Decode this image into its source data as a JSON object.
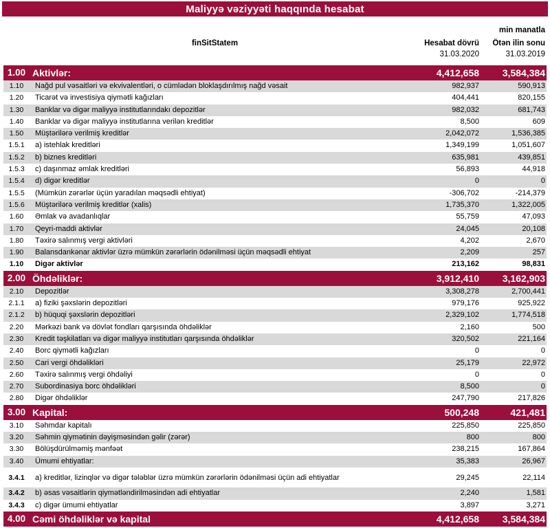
{
  "title": "Maliyyə vəziyyəti haqqında hesabat",
  "unit_note": "min manatla",
  "header": {
    "statement_label": "finSitStatem",
    "col1_label": "Hesabat dövrü",
    "col1_date": "31.03.2020",
    "col2_label": "Ötən ilin sonu",
    "col2_date": "31.03.2019"
  },
  "colors": {
    "accent": "#9B0F3D",
    "stripe": "#D9D9D9",
    "section_text": "#FFFFFF"
  },
  "rows": [
    {
      "code": "1.00",
      "label": "Aktivlər:",
      "v1": "4,412,658",
      "v2": "3,584,384",
      "type": "section",
      "shaded": false,
      "bold": true,
      "code_bold": true,
      "gap_before": 0
    },
    {
      "code": "1.10",
      "label": "Nağd pul vəsaitləri və  ekvivalentləri, o cümlədən bloklaşdırılmış nağd vəsait",
      "v1": "982,937",
      "v2": "590,913",
      "type": "item",
      "shaded": true,
      "bold": false,
      "code_bold": false,
      "gap_before": 0
    },
    {
      "code": "1.20",
      "label": "Ticarət və investisiya qiymətli kağızları",
      "v1": "404,441",
      "v2": "820,155",
      "type": "item",
      "shaded": false,
      "bold": false,
      "code_bold": false,
      "gap_before": 0
    },
    {
      "code": "1.30",
      "label": "Banklar və digər maliyyə institutlarındakı depozitlər",
      "v1": "982,032",
      "v2": "681,743",
      "type": "item",
      "shaded": true,
      "bold": false,
      "code_bold": false,
      "gap_before": 0
    },
    {
      "code": "1.40",
      "label": "Banklar və digər maliyyə institutlarına verilən kreditlər",
      "v1": "8,500",
      "v2": "609",
      "type": "item",
      "shaded": false,
      "bold": false,
      "code_bold": false,
      "gap_before": 0
    },
    {
      "code": "1.50",
      "label": "Müştərilərə verilmiş kreditlər",
      "v1": "2,042,072",
      "v2": "1,536,385",
      "type": "item",
      "shaded": true,
      "bold": false,
      "code_bold": false,
      "gap_before": 0
    },
    {
      "code": "1.5.1",
      "label": "a) istehlak kreditləri",
      "v1": "1,349,199",
      "v2": "1,051,607",
      "type": "item",
      "shaded": false,
      "bold": false,
      "code_bold": false,
      "gap_before": 0
    },
    {
      "code": "1.5.2",
      "label": "b) biznes kreditləri",
      "v1": "635,981",
      "v2": "439,851",
      "type": "item",
      "shaded": true,
      "bold": false,
      "code_bold": false,
      "gap_before": 0
    },
    {
      "code": "1.5.3",
      "label": "c) daşınmaz əmlak kreditləri",
      "v1": "56,893",
      "v2": "44,918",
      "type": "item",
      "shaded": false,
      "bold": false,
      "code_bold": false,
      "gap_before": 0
    },
    {
      "code": "1.5.4",
      "label": "d) digər kreditlər",
      "v1": "0",
      "v2": "0",
      "type": "item",
      "shaded": true,
      "bold": false,
      "code_bold": false,
      "gap_before": 0
    },
    {
      "code": "1.5.5",
      "label": "(Mümkün zərərlər üçün yaradılan məqsədli ehtiyat)",
      "v1": "-306,702",
      "v2": "-214,379",
      "type": "item",
      "shaded": false,
      "bold": false,
      "code_bold": false,
      "gap_before": 0
    },
    {
      "code": "1.5.6",
      "label": "Müştərilərə verilmiş kreditlər (xalis)",
      "v1": "1,735,370",
      "v2": "1,322,005",
      "type": "item",
      "shaded": true,
      "bold": false,
      "code_bold": false,
      "gap_before": 0
    },
    {
      "code": "1.60",
      "label": "Əmlak və avadanlıqlar",
      "v1": "55,759",
      "v2": "47,093",
      "type": "item",
      "shaded": false,
      "bold": false,
      "code_bold": false,
      "gap_before": 0
    },
    {
      "code": "1.70",
      "label": "Qeyri-maddi aktivlər",
      "v1": "24,045",
      "v2": "20,108",
      "type": "item",
      "shaded": true,
      "bold": false,
      "code_bold": false,
      "gap_before": 0
    },
    {
      "code": "1.80",
      "label": "Təxirə salınmış vergi aktivləri",
      "v1": "4,202",
      "v2": "2,670",
      "type": "item",
      "shaded": false,
      "bold": false,
      "code_bold": false,
      "gap_before": 0
    },
    {
      "code": "1.90",
      "label": "Balansdankənar aktivlər üzrə mümkün zərərlərin ödənilməsi üçün məqsədli ehtiyat",
      "v1": "2,209",
      "v2": "257",
      "type": "item",
      "shaded": true,
      "bold": false,
      "code_bold": false,
      "gap_before": 0
    },
    {
      "code": "1.10",
      "label": "Digər aktivlər",
      "v1": "213,162",
      "v2": "98,831",
      "type": "item",
      "shaded": false,
      "bold": true,
      "code_bold": true,
      "gap_before": 0
    },
    {
      "code": "2.00",
      "label": "Öhdəliklər:",
      "v1": "3,912,410",
      "v2": "3,162,903",
      "type": "section",
      "shaded": false,
      "bold": true,
      "code_bold": true,
      "gap_before": 0
    },
    {
      "code": "2.10",
      "label": "Depozitlər",
      "v1": "3,308,278",
      "v2": "2,700,441",
      "type": "item",
      "shaded": true,
      "bold": false,
      "code_bold": false,
      "gap_before": 0
    },
    {
      "code": "2.1.1",
      "label": "a) fiziki şəxslərin depozitləri",
      "v1": "979,176",
      "v2": "925,922",
      "type": "item",
      "shaded": false,
      "bold": false,
      "code_bold": false,
      "gap_before": 0
    },
    {
      "code": "2.1.2",
      "label": "b) hüquqi şəxslərin depozitləri",
      "v1": "2,329,102",
      "v2": "1,774,518",
      "type": "item",
      "shaded": true,
      "bold": false,
      "code_bold": false,
      "gap_before": 0
    },
    {
      "code": "2.20",
      "label": "Mərkəzi bank və dövlət fondları qarşısında öhdəliklər",
      "v1": "2,160",
      "v2": "500",
      "type": "item",
      "shaded": false,
      "bold": false,
      "code_bold": false,
      "gap_before": 0
    },
    {
      "code": "2.30",
      "label": "Kredit təşkilatları və digər maliyyə institutları qarşısında öhdəliklər",
      "v1": "320,502",
      "v2": "221,164",
      "type": "item",
      "shaded": true,
      "bold": false,
      "code_bold": false,
      "gap_before": 0
    },
    {
      "code": "2.40",
      "label": "Borc qiymətli kağızları",
      "v1": "0",
      "v2": "0",
      "type": "item",
      "shaded": false,
      "bold": false,
      "code_bold": false,
      "gap_before": 0
    },
    {
      "code": "2.50",
      "label": "Cari vergi öhdəlikləri",
      "v1": "25,179",
      "v2": "22,972",
      "type": "item",
      "shaded": true,
      "bold": false,
      "code_bold": false,
      "gap_before": 0
    },
    {
      "code": "2.60",
      "label": "Təxirə salınmış vergi öhdəliyi",
      "v1": "0",
      "v2": "0",
      "type": "item",
      "shaded": false,
      "bold": false,
      "code_bold": false,
      "gap_before": 0
    },
    {
      "code": "2.70",
      "label": "Subordinasiya borc öhdəlikləri",
      "v1": "8,500",
      "v2": "0",
      "type": "item",
      "shaded": true,
      "bold": false,
      "code_bold": false,
      "gap_before": 0
    },
    {
      "code": "2.80",
      "label": "Digər öhdəliklər",
      "v1": "247,790",
      "v2": "217,826",
      "type": "item",
      "shaded": false,
      "bold": false,
      "code_bold": false,
      "gap_before": 0
    },
    {
      "code": "3.00",
      "label": "Kapital:",
      "v1": "500,248",
      "v2": "421,481",
      "type": "section",
      "shaded": false,
      "bold": true,
      "code_bold": true,
      "gap_before": 0
    },
    {
      "code": "3.10",
      "label": "Səhmdar kapitalı",
      "v1": "225,850",
      "v2": "225,850",
      "type": "item",
      "shaded": false,
      "bold": false,
      "code_bold": false,
      "gap_before": 0
    },
    {
      "code": "3.20",
      "label": "Səhmin qiymətinin dəyişməsindən gəlir (zərər)",
      "v1": "800",
      "v2": "800",
      "type": "item",
      "shaded": true,
      "bold": false,
      "code_bold": false,
      "gap_before": 0
    },
    {
      "code": "3.30",
      "label": "Bölüşdürülməmiş mənfəət",
      "v1": "238,215",
      "v2": "167,864",
      "type": "item",
      "shaded": false,
      "bold": false,
      "code_bold": false,
      "gap_before": 0
    },
    {
      "code": "3.40",
      "label": "Ümumi ehtiyatlar:",
      "v1": "35,383",
      "v2": "26,967",
      "type": "item",
      "shaded": true,
      "bold": false,
      "code_bold": false,
      "gap_before": 0
    },
    {
      "code": "3.4.1",
      "label": "a) kreditlər, lizinqlər və digər tələblər üzrə mümkün zərərlərin ödənilməsi üçün adi ehtiyatlar",
      "v1": "29,245",
      "v2": "22,114",
      "type": "item",
      "shaded": false,
      "bold": false,
      "code_bold": true,
      "gap_before": 7
    },
    {
      "code": "3.4.2",
      "label": "b) əsas vəsaitlərin qiymətləndirilməsindən adi ehtiyatlar",
      "v1": "2,240",
      "v2": "1,581",
      "type": "item",
      "shaded": true,
      "bold": false,
      "code_bold": true,
      "gap_before": 5
    },
    {
      "code": "3.4.3",
      "label": "c) digər ümumi ehtiyatlar",
      "v1": "3,897",
      "v2": "3,271",
      "type": "item",
      "shaded": false,
      "bold": false,
      "code_bold": true,
      "gap_before": 0
    },
    {
      "code": "4.00",
      "label": "Cəmi öhdəliklər və kapital",
      "v1": "4,412,658",
      "v2": "3,584,384",
      "type": "section",
      "shaded": false,
      "bold": true,
      "code_bold": true,
      "gap_before": 0
    }
  ]
}
